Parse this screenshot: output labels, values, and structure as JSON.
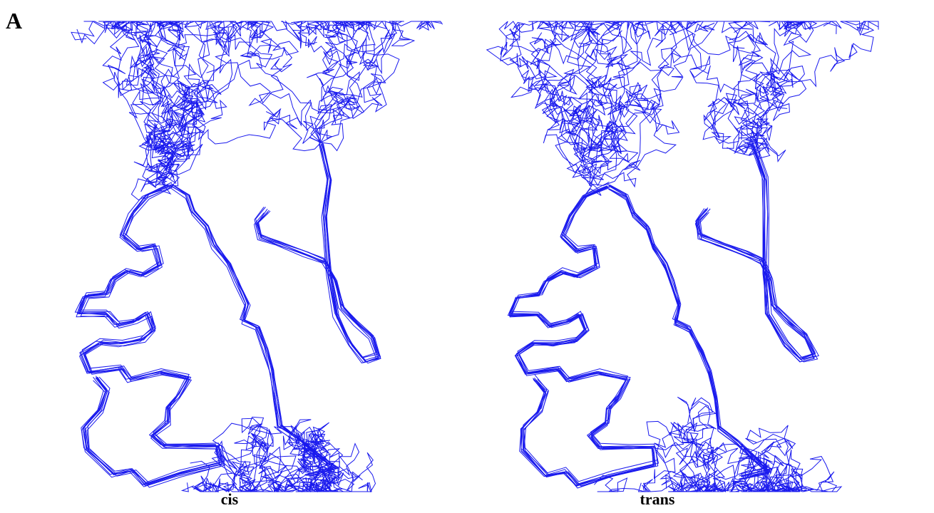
{
  "panel_label": "A",
  "panels": [
    {
      "label": "cis"
    },
    {
      "label": "trans"
    }
  ]
}
